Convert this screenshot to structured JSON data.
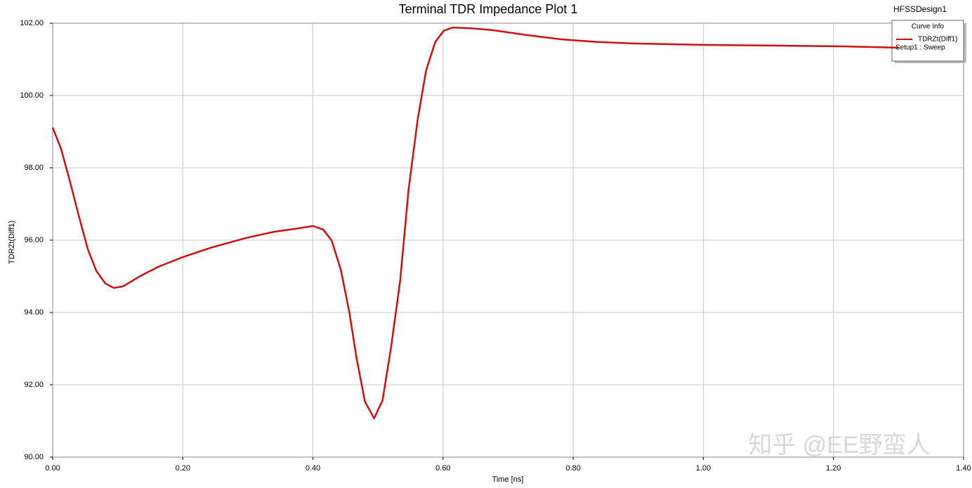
{
  "chart_data": {
    "type": "line",
    "title": "Terminal TDR Impedance Plot 1",
    "design": "HFSSDesign1",
    "xlabel": "Time [ns]",
    "ylabel": "TDRZt(Diff1)",
    "legend_title": "Curve Info",
    "legend_subtitle": "Setup1 : Sweep",
    "watermark": "知乎 @EE野蛮人",
    "grid": true,
    "xlim": [
      0,
      1.4
    ],
    "ylim": [
      90,
      102
    ],
    "xticks": [
      {
        "value": 0,
        "label": "0.00"
      },
      {
        "value": 0.2,
        "label": "0.20"
      },
      {
        "value": 0.4,
        "label": "0.40"
      },
      {
        "value": 0.6,
        "label": "0.60"
      },
      {
        "value": 0.8,
        "label": "0.80"
      },
      {
        "value": 1.0,
        "label": "1.00"
      },
      {
        "value": 1.2,
        "label": "1.20"
      },
      {
        "value": 1.4,
        "label": "1.40"
      }
    ],
    "yticks": [
      {
        "value": 90,
        "label": "90.00"
      },
      {
        "value": 92,
        "label": "92.00"
      },
      {
        "value": 94,
        "label": "94.00"
      },
      {
        "value": 96,
        "label": "96.00"
      },
      {
        "value": 98,
        "label": "98.00"
      },
      {
        "value": 100,
        "label": "100.00"
      },
      {
        "value": 102,
        "label": "102.00"
      }
    ],
    "x": [
      0,
      0.013,
      0.027,
      0.04,
      0.054,
      0.067,
      0.081,
      0.094,
      0.108,
      0.135,
      0.162,
      0.2,
      0.243,
      0.297,
      0.34,
      0.372,
      0.4,
      0.416,
      0.429,
      0.443,
      0.456,
      0.467,
      0.48,
      0.494,
      0.507,
      0.52,
      0.534,
      0.547,
      0.561,
      0.574,
      0.588,
      0.601,
      0.615,
      0.642,
      0.675,
      0.729,
      0.783,
      0.837,
      0.891,
      0.945,
      0.998,
      1.106,
      1.214,
      1.3
    ],
    "series": [
      {
        "name": "TDRZt(Diff1)",
        "color": "#d01010",
        "values": [
          99.11,
          98.52,
          97.59,
          96.68,
          95.75,
          95.15,
          94.8,
          94.68,
          94.72,
          95.01,
          95.26,
          95.53,
          95.79,
          96.06,
          96.23,
          96.31,
          96.39,
          96.29,
          95.98,
          95.17,
          94.0,
          92.74,
          91.53,
          91.07,
          91.57,
          93.03,
          94.87,
          97.4,
          99.34,
          100.7,
          101.48,
          101.79,
          101.88,
          101.86,
          101.81,
          101.67,
          101.55,
          101.48,
          101.44,
          101.42,
          101.4,
          101.38,
          101.36,
          101.32
        ]
      }
    ]
  }
}
